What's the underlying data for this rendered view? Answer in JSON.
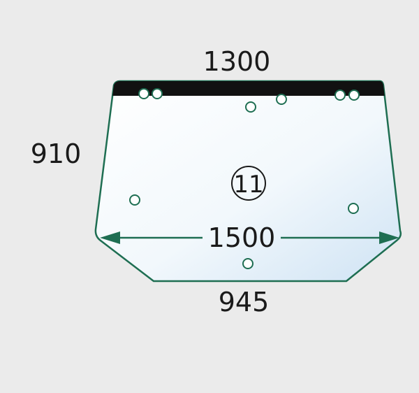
{
  "diagram": {
    "dimensions": {
      "top_width": "1300",
      "height": "910",
      "max_width": "1500",
      "bottom_width": "945"
    },
    "part_number": "11",
    "colors": {
      "background": "#ebebeb",
      "glass_outline": "#1e6e52",
      "glass_fill_light": "#ffffff",
      "glass_fill_tint": "#cfe3f4",
      "top_strip": "#111111",
      "holes": "#1e6e52"
    }
  }
}
